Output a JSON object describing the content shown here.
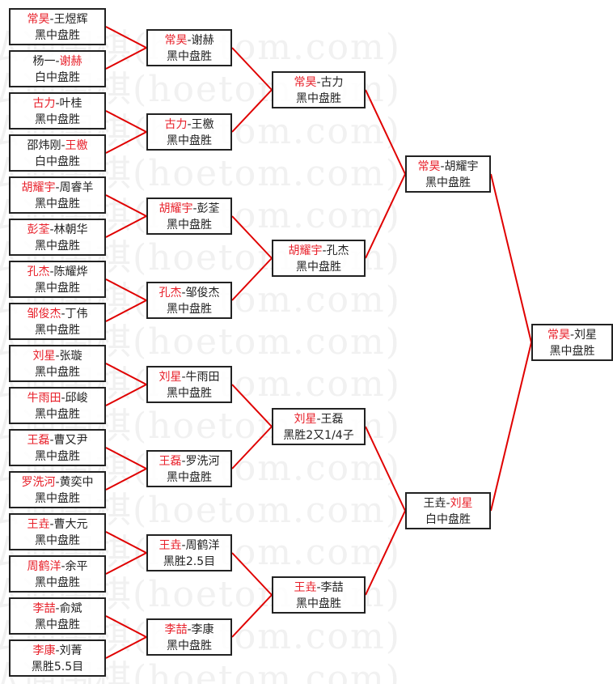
{
  "watermark": "弘通围棋(hoetom.com)",
  "colors": {
    "winner": "#e8202a",
    "line": "#e00000",
    "border": "#222222"
  },
  "rounds": [
    [
      {
        "p1": "常昊",
        "p2": "王煜辉",
        "winner": 0,
        "result": "黑中盘胜"
      },
      {
        "p1": "杨一",
        "p2": "谢赫",
        "winner": 1,
        "result": "白中盘胜"
      },
      {
        "p1": "古力",
        "p2": "叶桂",
        "winner": 0,
        "result": "黑中盘胜"
      },
      {
        "p1": "邵炜刚",
        "p2": "王檄",
        "winner": 1,
        "result": "白中盘胜"
      },
      {
        "p1": "胡耀宇",
        "p2": "周睿羊",
        "winner": 0,
        "result": "黑中盘胜"
      },
      {
        "p1": "彭荃",
        "p2": "林朝华",
        "winner": 0,
        "result": "黑中盘胜"
      },
      {
        "p1": "孔杰",
        "p2": "陈耀烨",
        "winner": 0,
        "result": "黑中盘胜"
      },
      {
        "p1": "邹俊杰",
        "p2": "丁伟",
        "winner": 0,
        "result": "黑中盘胜"
      },
      {
        "p1": "刘星",
        "p2": "张璇",
        "winner": 0,
        "result": "黑中盘胜"
      },
      {
        "p1": "牛雨田",
        "p2": "邱峻",
        "winner": 0,
        "result": "黑中盘胜"
      },
      {
        "p1": "王磊",
        "p2": "曹又尹",
        "winner": 0,
        "result": "黑中盘胜"
      },
      {
        "p1": "罗洗河",
        "p2": "黄奕中",
        "winner": 0,
        "result": "黑中盘胜"
      },
      {
        "p1": "王垚",
        "p2": "曹大元",
        "winner": 0,
        "result": "黑中盘胜"
      },
      {
        "p1": "周鹤洋",
        "p2": "余平",
        "winner": 0,
        "result": "黑中盘胜"
      },
      {
        "p1": "李喆",
        "p2": "俞斌",
        "winner": 0,
        "result": "黑中盘胜"
      },
      {
        "p1": "李康",
        "p2": "刘菁",
        "winner": 0,
        "result": "黑胜5.5目"
      }
    ],
    [
      {
        "p1": "常昊",
        "p2": "谢赫",
        "winner": 0,
        "result": "黑中盘胜"
      },
      {
        "p1": "古力",
        "p2": "王檄",
        "winner": 0,
        "result": "黑中盘胜"
      },
      {
        "p1": "胡耀宇",
        "p2": "彭荃",
        "winner": 0,
        "result": "黑中盘胜"
      },
      {
        "p1": "孔杰",
        "p2": "邹俊杰",
        "winner": 0,
        "result": "黑中盘胜"
      },
      {
        "p1": "刘星",
        "p2": "牛雨田",
        "winner": 0,
        "result": "黑中盘胜"
      },
      {
        "p1": "王磊",
        "p2": "罗洗河",
        "winner": 0,
        "result": "黑中盘胜"
      },
      {
        "p1": "王垚",
        "p2": "周鹤洋",
        "winner": 0,
        "result": "黑胜2.5目"
      },
      {
        "p1": "李喆",
        "p2": "李康",
        "winner": 0,
        "result": "黑中盘胜"
      }
    ],
    [
      {
        "p1": "常昊",
        "p2": "古力",
        "winner": 0,
        "result": "黑中盘胜"
      },
      {
        "p1": "胡耀宇",
        "p2": "孔杰",
        "winner": 0,
        "result": "黑中盘胜"
      },
      {
        "p1": "刘星",
        "p2": "王磊",
        "winner": 0,
        "result": "黑胜2又1/4子"
      },
      {
        "p1": "王垚",
        "p2": "李喆",
        "winner": 0,
        "result": "黑中盘胜"
      }
    ],
    [
      {
        "p1": "常昊",
        "p2": "胡耀宇",
        "winner": 0,
        "result": "黑中盘胜"
      },
      {
        "p1": "王垚",
        "p2": "刘星",
        "winner": 1,
        "result": "白中盘胜"
      }
    ],
    [
      {
        "p1": "常昊",
        "p2": "刘星",
        "winner": 0,
        "result": "黑中盘胜"
      }
    ]
  ]
}
